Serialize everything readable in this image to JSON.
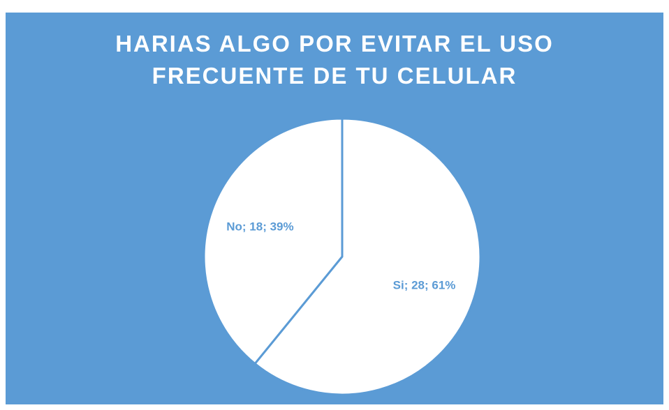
{
  "chart_data": {
    "type": "pie",
    "title": "HARIAS ALGO POR EVITAR  EL USO\nFRECUENTE DE TU CELULAR",
    "categories": [
      "Si",
      "No"
    ],
    "values": [
      28,
      18
    ],
    "value_labels": [
      "Si; 28; 61%",
      "No; 18; 39%"
    ],
    "colors": [
      "#ffffff",
      "#ffffff"
    ]
  }
}
